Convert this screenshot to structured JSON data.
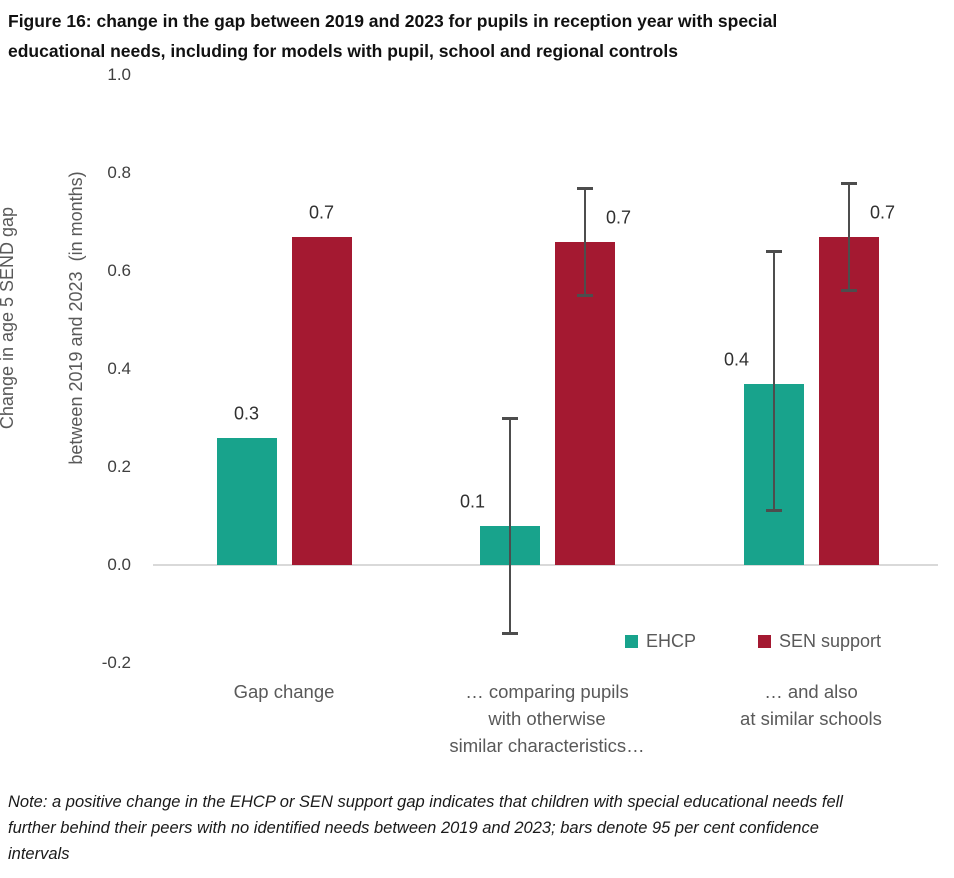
{
  "figure_title": {
    "lines": [
      "Figure 16: change in the gap between 2019 and 2023 for pupils in reception year with special",
      "educational needs, including for models with pupil, school and regional controls"
    ]
  },
  "note": {
    "lines": [
      "Note: a positive change in the EHCP or SEN support gap indicates that children with special educational needs fell",
      "further behind their peers with no identified needs between 2019 and 2023; bars denote 95 per cent confidence",
      "intervals"
    ]
  },
  "chart_data": {
    "type": "bar",
    "title": "Figure 16: change in the gap between 2019 and 2023 for pupils in reception year with special educational needs, including for models with pupil, school and regional controls",
    "ylabel_lines": [
      "Change in age 5 SEND gap",
      "between 2019 and 2023  (in months)"
    ],
    "ylim": [
      -0.2,
      1.0
    ],
    "yticks": [
      "1.0",
      "0.8",
      "0.6",
      "0.4",
      "0.2",
      "0.0",
      "-0.2"
    ],
    "grid": false,
    "legend_position": "inside-bottom-right",
    "categories": [
      "Gap change",
      "… comparing pupils\nwith otherwise\nsimilar characteristics…",
      "… and also\nat similar schools"
    ],
    "series": [
      {
        "name": "EHCP",
        "color": "#18A38C",
        "values": [
          0.26,
          0.08,
          0.37
        ],
        "value_labels": [
          "0.3",
          "0.1",
          "0.4"
        ],
        "ci_low": [
          null,
          -0.14,
          0.11
        ],
        "ci_high": [
          null,
          0.3,
          0.64
        ]
      },
      {
        "name": "SEN support",
        "color": "#A41931",
        "values": [
          0.67,
          0.66,
          0.67
        ],
        "value_labels": [
          "0.7",
          "0.7",
          "0.7"
        ],
        "ci_low": [
          null,
          0.55,
          0.56
        ],
        "ci_high": [
          null,
          0.77,
          0.78
        ]
      }
    ],
    "ci_note": "bars denote 95 per cent confidence intervals"
  },
  "colors": {
    "error_bar": "#4d4d4d",
    "zero_line": "#d9d9d9",
    "tick_text": "#3f3f3f",
    "category_text": "#595959"
  }
}
